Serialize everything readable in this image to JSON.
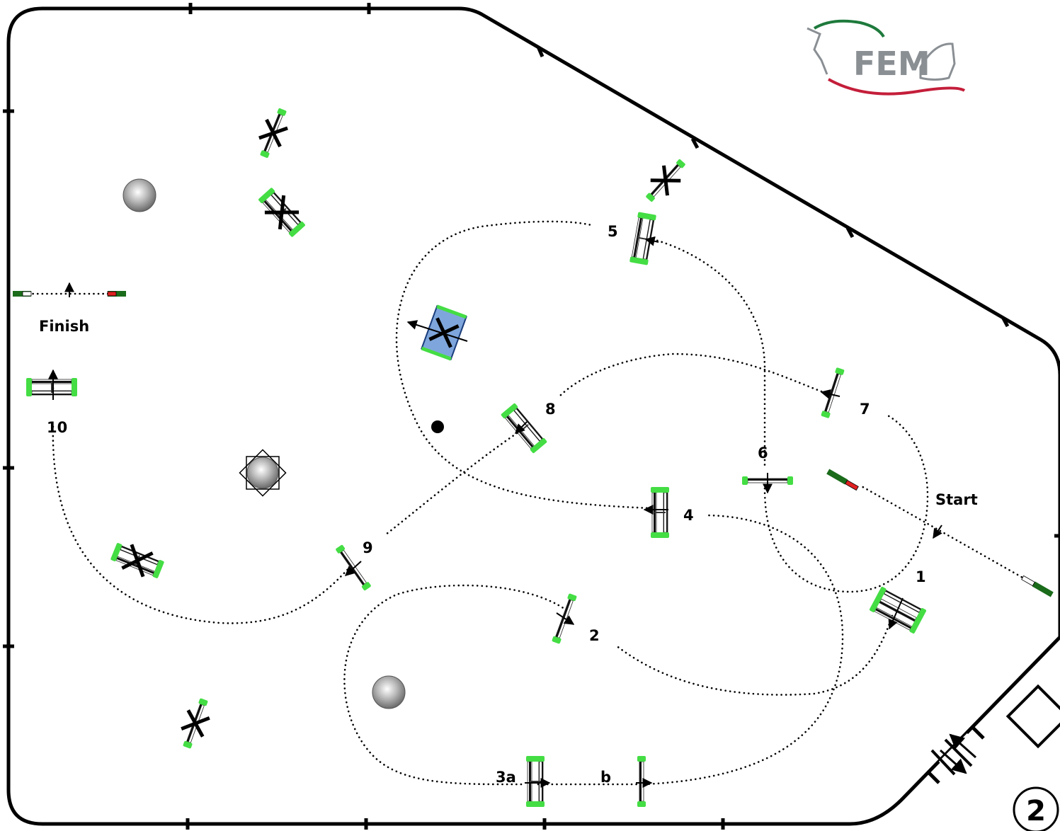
{
  "logo": {
    "text": "FEM"
  },
  "labels": {
    "start": "Start",
    "finish": "Finish",
    "f1": "1",
    "f2": "2",
    "f3a": "3a",
    "f3b": "b",
    "f4": "4",
    "f5": "5",
    "f6": "6",
    "f7": "7",
    "f8": "8",
    "f9": "9",
    "f10": "10"
  },
  "page_number": "2",
  "colors": {
    "flag_green": "#44dd44",
    "flag_dark_green": "#1a6b1a",
    "water_blue": "#7ea6dc",
    "start_red": "#e02020",
    "logo_green": "#1e7a3c",
    "logo_red": "#c41e3a",
    "logo_gray": "#8a8f94"
  }
}
